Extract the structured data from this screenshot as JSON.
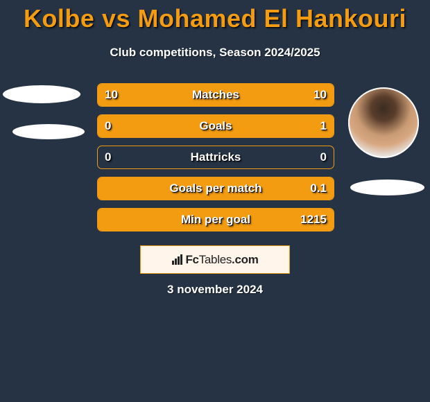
{
  "title": "Kolbe vs Mohamed El Hankouri",
  "subtitle": "Club competitions, Season 2024/2025",
  "date": "3 november 2024",
  "logo_text_a": "Fc",
  "logo_text_b": "Tables",
  "logo_text_c": ".com",
  "colors": {
    "background": "#253345",
    "accent": "#f39c12",
    "text": "#ffffff",
    "logo_bg": "#fff5ea"
  },
  "rows": [
    {
      "label": "Matches",
      "left": "10",
      "right": "10",
      "left_pct": 50,
      "right_pct": 50
    },
    {
      "label": "Goals",
      "left": "0",
      "right": "1",
      "left_pct": 0,
      "right_pct": 100
    },
    {
      "label": "Hattricks",
      "left": "0",
      "right": "0",
      "left_pct": 0,
      "right_pct": 0
    },
    {
      "label": "Goals per match",
      "left": "",
      "right": "0.1",
      "left_pct": 0,
      "right_pct": 100
    },
    {
      "label": "Min per goal",
      "left": "",
      "right": "1215",
      "left_pct": 0,
      "right_pct": 100
    }
  ]
}
